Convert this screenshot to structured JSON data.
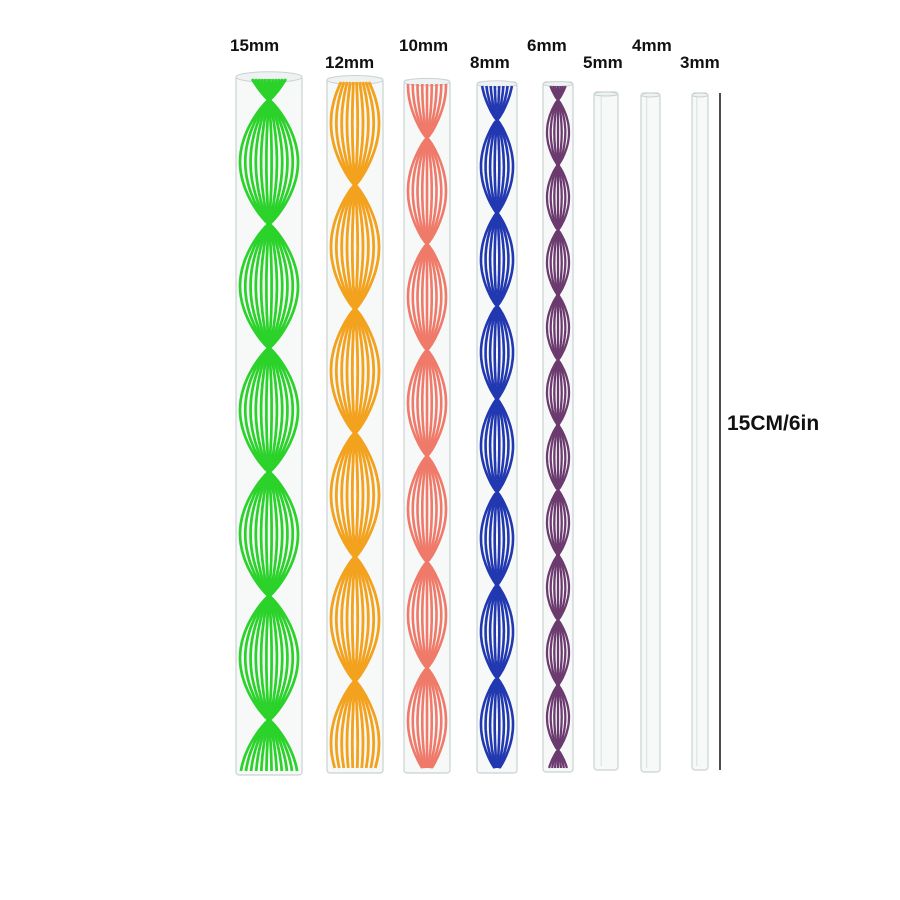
{
  "rods": [
    {
      "label": "15mm",
      "color": "#2ad22a",
      "patterned": true
    },
    {
      "label": "12mm",
      "color": "#f3a21e",
      "patterned": true
    },
    {
      "label": "10mm",
      "color": "#f07a6a",
      "patterned": true
    },
    {
      "label": "8mm",
      "color": "#2238b0",
      "patterned": true
    },
    {
      "label": "6mm",
      "color": "#6b3a6e",
      "patterned": true
    },
    {
      "label": "5mm",
      "color": "",
      "patterned": false
    },
    {
      "label": "4mm",
      "color": "",
      "patterned": false
    },
    {
      "label": "3mm",
      "color": "",
      "patterned": false
    }
  ],
  "length_label": "15CM/6in"
}
